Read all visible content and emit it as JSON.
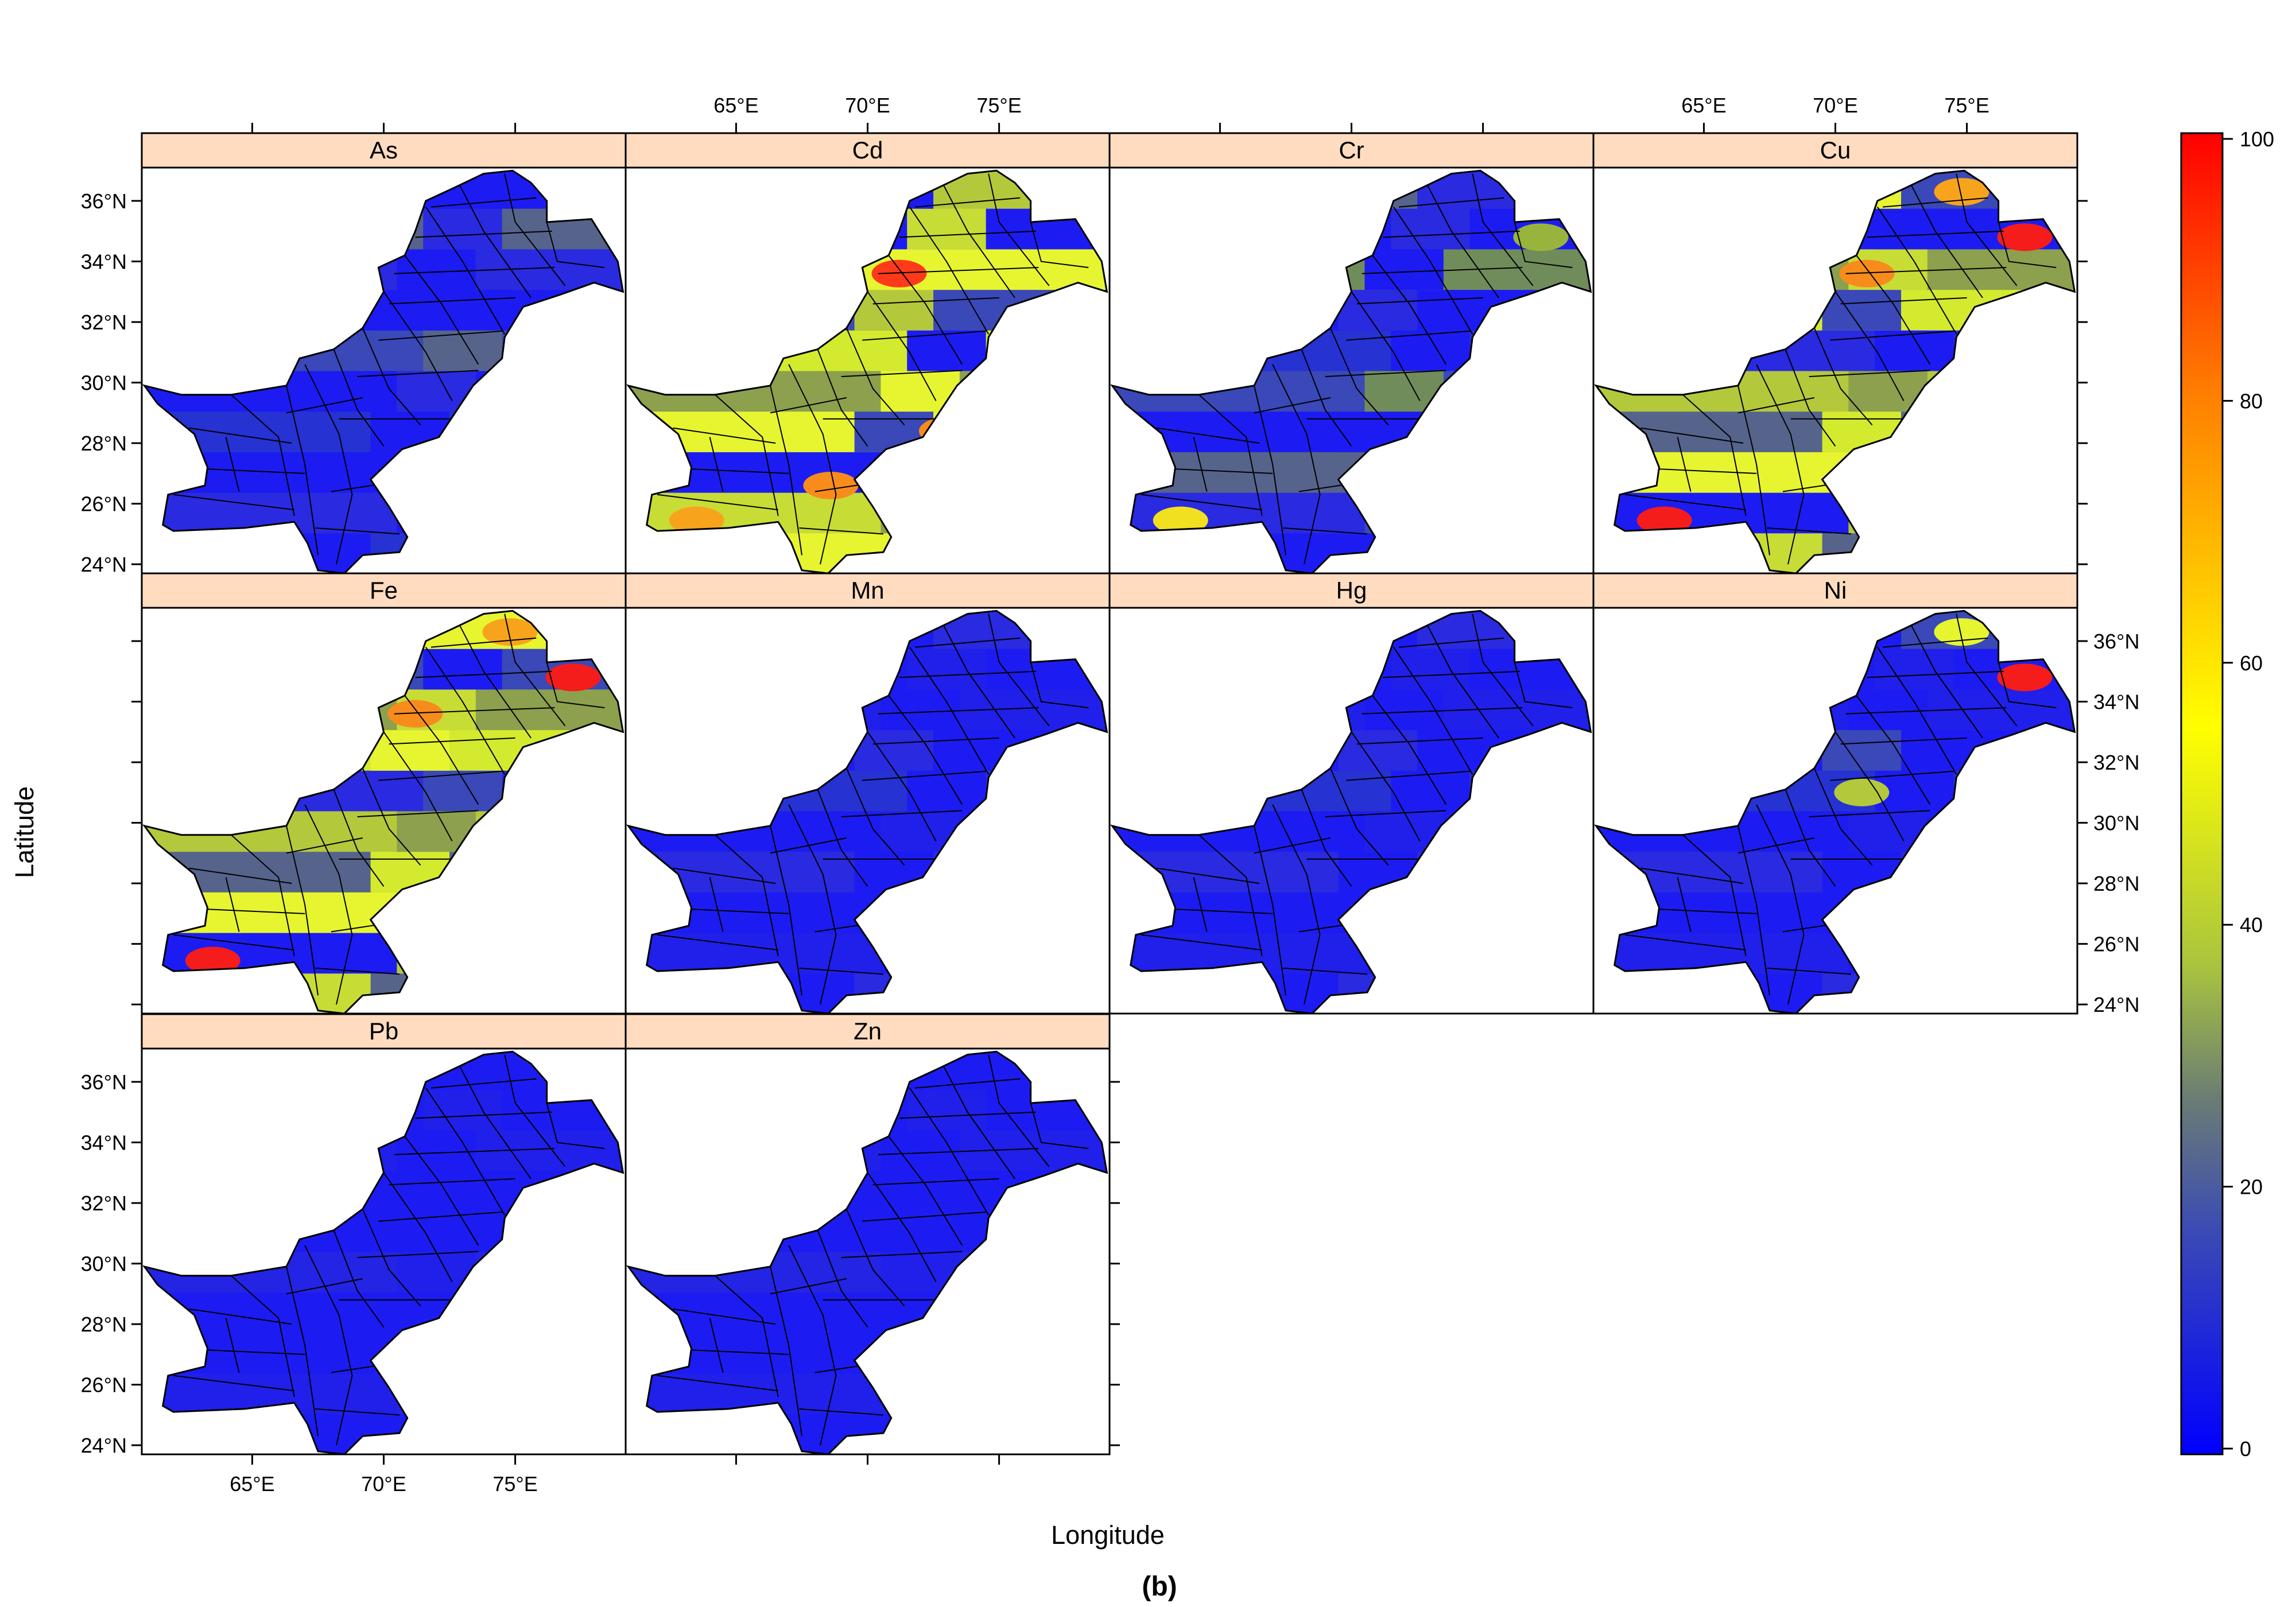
{
  "figure": {
    "caption": "(b)",
    "x_axis_label": "Longitude",
    "y_axis_label": "Latitude"
  },
  "panels": [
    {
      "label": "As",
      "palette": [
        "#1c1cf2",
        "#2a2ae0",
        "#1c1cf2",
        "#2632d2",
        "#1c1cf2",
        "#3a48b8",
        "#1c1cf2",
        "#2a2ae0",
        "#56648c",
        "#1c1cf2"
      ],
      "accents": []
    },
    {
      "label": "Cd",
      "palette": [
        "#e6f530",
        "#c8dc36",
        "#1c1cf2",
        "#e6f530",
        "#8ca04e",
        "#d4ea2e",
        "#3a48b8",
        "#e6f530",
        "#1c1cf2",
        "#b4c83c"
      ],
      "accents": [
        {
          "region": "north-west",
          "color": "#ff3a1a"
        },
        {
          "region": "central-south",
          "color": "#f78c1c"
        },
        {
          "region": "east",
          "color": "#f78c1c"
        },
        {
          "region": "south-west-coast",
          "color": "#f7a41c"
        }
      ]
    },
    {
      "label": "Cr",
      "palette": [
        "#1c1cf2",
        "#2a2ae0",
        "#56648c",
        "#1c1cf2",
        "#3a48b8",
        "#2632d2",
        "#1c1cf2",
        "#708c5a",
        "#1c1cf2",
        "#2a2ae0"
      ],
      "accents": [
        {
          "region": "south-west-coast",
          "color": "#f0e020"
        },
        {
          "region": "north-east",
          "color": "#98b43c"
        }
      ]
    },
    {
      "label": "Cu",
      "palette": [
        "#c8dc36",
        "#1c1cf2",
        "#e6f530",
        "#56648c",
        "#b4c83c",
        "#2a2ae0",
        "#d4ea2e",
        "#8ca04e",
        "#1c1cf2",
        "#3a48b8"
      ],
      "accents": [
        {
          "region": "south-west-coast",
          "color": "#f51c1c"
        },
        {
          "region": "north-east",
          "color": "#f51c1c"
        },
        {
          "region": "north",
          "color": "#f7a41c"
        },
        {
          "region": "north-west",
          "color": "#f78c1c"
        }
      ]
    },
    {
      "label": "Fe",
      "palette": [
        "#c8dc36",
        "#1c1cf2",
        "#e6f530",
        "#56648c",
        "#b4c83c",
        "#2a2ae0",
        "#d4ea2e",
        "#8ca04e",
        "#3a48b8",
        "#e6f530"
      ],
      "accents": [
        {
          "region": "south-west-coast",
          "color": "#f51c1c"
        },
        {
          "region": "north-east",
          "color": "#f51c1c"
        },
        {
          "region": "north",
          "color": "#f7a41c"
        },
        {
          "region": "north-west",
          "color": "#f78c1c"
        }
      ]
    },
    {
      "label": "Mn",
      "palette": [
        "#1c1cf2",
        "#2020ea",
        "#1c1cf2",
        "#2a2ae0",
        "#1c1cf2",
        "#2632d2",
        "#1c1cf2",
        "#2020ea",
        "#1c1cf2",
        "#2a2ae0"
      ],
      "accents": []
    },
    {
      "label": "Hg",
      "palette": [
        "#1c1cf2",
        "#2020ea",
        "#1c1cf2",
        "#2a2ae0",
        "#1c1cf2",
        "#2632d2",
        "#1c1cf2",
        "#2020ea",
        "#1c1cf2",
        "#2a2ae0"
      ],
      "accents": []
    },
    {
      "label": "Ni",
      "palette": [
        "#1c1cf2",
        "#2020ea",
        "#1c1cf2",
        "#2a2ae0",
        "#1c1cf2",
        "#2632d2",
        "#1c1cf2",
        "#2020ea",
        "#1c1cf2",
        "#3a48b8"
      ],
      "accents": [
        {
          "region": "north-east",
          "color": "#f51c1c"
        },
        {
          "region": "north",
          "color": "#e6f530"
        },
        {
          "region": "central-north",
          "color": "#b4c83c"
        }
      ]
    },
    {
      "label": "Pb",
      "palette": [
        "#1c1cf2",
        "#2020ea",
        "#1c1cf2",
        "#1c1cf2",
        "#2424e4",
        "#1c1cf2",
        "#1c1cf2",
        "#2020ea",
        "#1c1cf2",
        "#1c1cf2"
      ],
      "accents": []
    },
    {
      "label": "Zn",
      "palette": [
        "#1c1cf2",
        "#2020ea",
        "#1c1cf2",
        "#1c1cf2",
        "#2424e4",
        "#1c1cf2",
        "#1c1cf2",
        "#2020ea",
        "#1c1cf2",
        "#1c1cf2"
      ],
      "accents": []
    }
  ],
  "x_ticks": [
    "65°E",
    "70°E",
    "75°E"
  ],
  "y_ticks": [
    "24°N",
    "26°N",
    "28°N",
    "30°N",
    "32°N",
    "34°N",
    "36°N"
  ],
  "colorbar": {
    "ticks": [
      "0",
      "20",
      "40",
      "60",
      "80",
      "100"
    ],
    "range": [
      0,
      100
    ],
    "colors": [
      "#0000ff",
      "#3b4bb4",
      "#6b7d73",
      "#a9c43e",
      "#ffff00",
      "#ff8000",
      "#ff0000"
    ]
  },
  "colors": {
    "strip_background": "#ffdcc0",
    "border": "#000000"
  }
}
